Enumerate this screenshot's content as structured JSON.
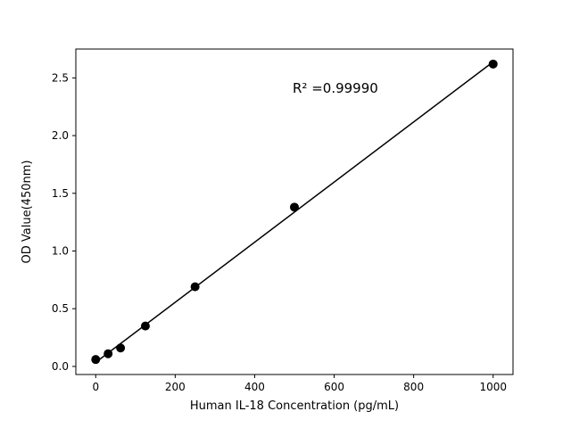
{
  "chart_data": {
    "type": "scatter",
    "title": "",
    "xlabel": "Human IL-18 Concentration (pg/mL)",
    "ylabel": "OD Value(450nm)",
    "annotation": "R² =0.99990",
    "x": [
      0,
      31.25,
      62.5,
      125,
      250,
      500,
      1000
    ],
    "y": [
      0.06,
      0.11,
      0.16,
      0.35,
      0.69,
      1.38,
      2.62
    ],
    "fit_line": {
      "x": [
        0,
        1000
      ],
      "y": [
        0.035,
        2.639
      ]
    },
    "x_ticks": [
      0,
      200,
      400,
      600,
      800,
      1000
    ],
    "x_tick_labels": [
      "0",
      "200",
      "400",
      "600",
      "800",
      "1000"
    ],
    "y_ticks": [
      0.0,
      0.5,
      1.0,
      1.5,
      2.0,
      2.5
    ],
    "y_tick_labels": [
      "0.0",
      "0.5",
      "1.0",
      "1.5",
      "2.0",
      "2.5"
    ],
    "xlim": [
      -50,
      1050
    ],
    "ylim": [
      -0.07,
      2.75
    ],
    "grid": false,
    "legend_position": "none",
    "marker_color": "#000000",
    "line_color": "#000000",
    "background_color": "#ffffff"
  }
}
